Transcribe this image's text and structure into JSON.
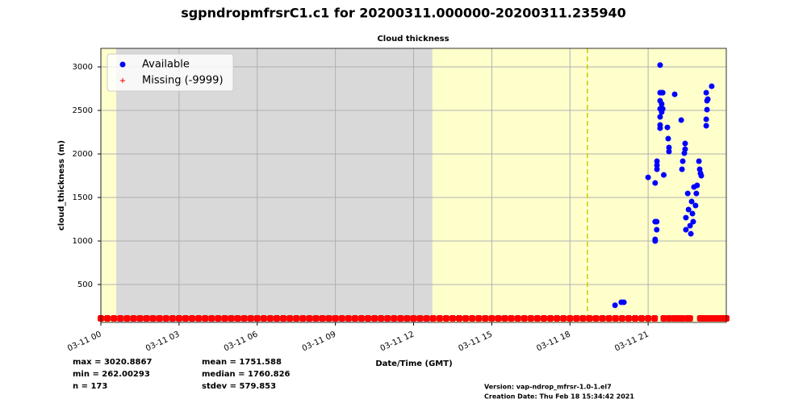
{
  "chart_data": {
    "type": "scatter",
    "title": "sgpndropmfrsrC1.c1 for 20200311.000000-20200311.235940",
    "subtitle": "Cloud thickness",
    "y_label": "cloud_thickness (m)",
    "x_label": "Date/Time (GMT)",
    "xlim": [
      0,
      24
    ],
    "xticks": [
      {
        "value": 0,
        "label": "03-11 00"
      },
      {
        "value": 3,
        "label": "03-11 03"
      },
      {
        "value": 6,
        "label": "03-11 06"
      },
      {
        "value": 9,
        "label": "03-11 09"
      },
      {
        "value": 12,
        "label": "03-11 12"
      },
      {
        "value": 15,
        "label": "03-11 15"
      },
      {
        "value": 18,
        "label": "03-11 18"
      },
      {
        "value": 21,
        "label": "03-11 21"
      }
    ],
    "ylim": [
      65,
      3213
    ],
    "yticks": [
      500,
      1000,
      1500,
      2000,
      2500,
      3000
    ],
    "grid": true,
    "legend": "upper left",
    "background_color": "#ffffcc",
    "gray_span": [
      0.59,
      12.72
    ],
    "gray_color": "#d9d9d9",
    "dashed_x": 18.67,
    "dashed_color": "#cccc00",
    "series": [
      {
        "name": "Available",
        "color": "#0000ff",
        "marker": "circle",
        "x": [
          19.73,
          19.97,
          20.07,
          21.0,
          21.27,
          21.27,
          21.27,
          21.27,
          21.33,
          21.33,
          21.34,
          21.34,
          21.34,
          21.46,
          21.46,
          21.46,
          21.46,
          21.46,
          21.46,
          21.46,
          21.52,
          21.52,
          21.52,
          21.6,
          21.56,
          21.56,
          21.74,
          21.77,
          21.8,
          21.8,
          22.02,
          22.27,
          22.3,
          22.33,
          22.39,
          22.42,
          22.42,
          22.45,
          22.45,
          22.52,
          22.55,
          22.61,
          22.64,
          22.67,
          22.7,
          22.73,
          22.76,
          22.82,
          22.85,
          22.88,
          22.95,
          22.98,
          23.01,
          23.04,
          23.23,
          23.26,
          23.26,
          23.23,
          23.23,
          23.29,
          23.44
        ],
        "values": [
          262,
          296,
          296,
          1731,
          1667,
          1000,
          1019,
          1222,
          1222,
          1130,
          1917,
          1870,
          1824,
          3021,
          2704,
          2611,
          2519,
          2426,
          2333,
          2296,
          2704,
          2574,
          2481,
          1759,
          2704,
          2519,
          2305,
          2176,
          2074,
          2028,
          2685,
          2389,
          1824,
          1917,
          2009,
          2120,
          2055,
          1268,
          1130,
          1546,
          1361,
          1176,
          1083,
          1454,
          1315,
          1222,
          1620,
          1407,
          1546,
          1639,
          1917,
          1824,
          1778,
          1750,
          2704,
          2611,
          2509,
          2398,
          2324,
          2630,
          2778
        ]
      },
      {
        "name": "Missing (-9999)",
        "color": "#ff0000",
        "marker": "plus",
        "x": [
          0,
          0.25,
          0.5,
          0.75,
          1,
          1.25,
          1.5,
          1.75,
          2,
          2.25,
          2.5,
          2.75,
          3,
          3.25,
          3.5,
          3.75,
          4,
          4.25,
          4.5,
          4.75,
          5,
          5.25,
          5.5,
          5.75,
          6,
          6.25,
          6.5,
          6.75,
          7,
          7.25,
          7.5,
          7.75,
          8,
          8.25,
          8.5,
          8.75,
          9,
          9.25,
          9.5,
          9.75,
          10,
          10.25,
          10.5,
          10.75,
          11,
          11.25,
          11.5,
          11.75,
          12,
          12.25,
          12.5,
          12.75,
          13,
          13.25,
          13.5,
          13.75,
          14,
          14.25,
          14.5,
          14.75,
          15,
          15.25,
          15.5,
          15.75,
          16,
          16.25,
          16.5,
          16.75,
          17,
          17.25,
          17.5,
          17.75,
          18,
          18.25,
          18.5,
          18.75,
          19,
          19.25,
          19.5,
          19.75,
          20,
          20.25,
          20.5,
          20.75,
          21,
          21.25,
          21.6,
          21.8,
          22,
          22.1,
          22.2,
          22.3,
          22.5,
          22.6,
          23,
          23.1,
          23.2,
          23.3,
          23.4,
          23.5,
          23.6,
          23.7,
          23.8,
          23.9,
          24
        ],
        "values": [
          111,
          111,
          111,
          111,
          111,
          111,
          111,
          111,
          111,
          111,
          111,
          111,
          111,
          111,
          111,
          111,
          111,
          111,
          111,
          111,
          111,
          111,
          111,
          111,
          111,
          111,
          111,
          111,
          111,
          111,
          111,
          111,
          111,
          111,
          111,
          111,
          111,
          111,
          111,
          111,
          111,
          111,
          111,
          111,
          111,
          111,
          111,
          111,
          111,
          111,
          111,
          111,
          111,
          111,
          111,
          111,
          111,
          111,
          111,
          111,
          111,
          111,
          111,
          111,
          111,
          111,
          111,
          111,
          111,
          111,
          111,
          111,
          111,
          111,
          111,
          111,
          111,
          111,
          111,
          111,
          111,
          111,
          111,
          111,
          111,
          111,
          111,
          111,
          111,
          111,
          111,
          111,
          111,
          111,
          111,
          111,
          111,
          111,
          111,
          111,
          111,
          111,
          111,
          111,
          111
        ]
      }
    ],
    "stats": [
      [
        "max = 3020.8867",
        "min = 262.00293",
        "n = 173"
      ],
      [
        "mean = 1751.588",
        "median = 1760.826",
        "stdev = 579.853"
      ]
    ],
    "version": "Version: vap-ndrop_mfrsr-1.0-1.el7",
    "creation_date": "Creation Date: Thu Feb 18 15:34:42 2021"
  }
}
